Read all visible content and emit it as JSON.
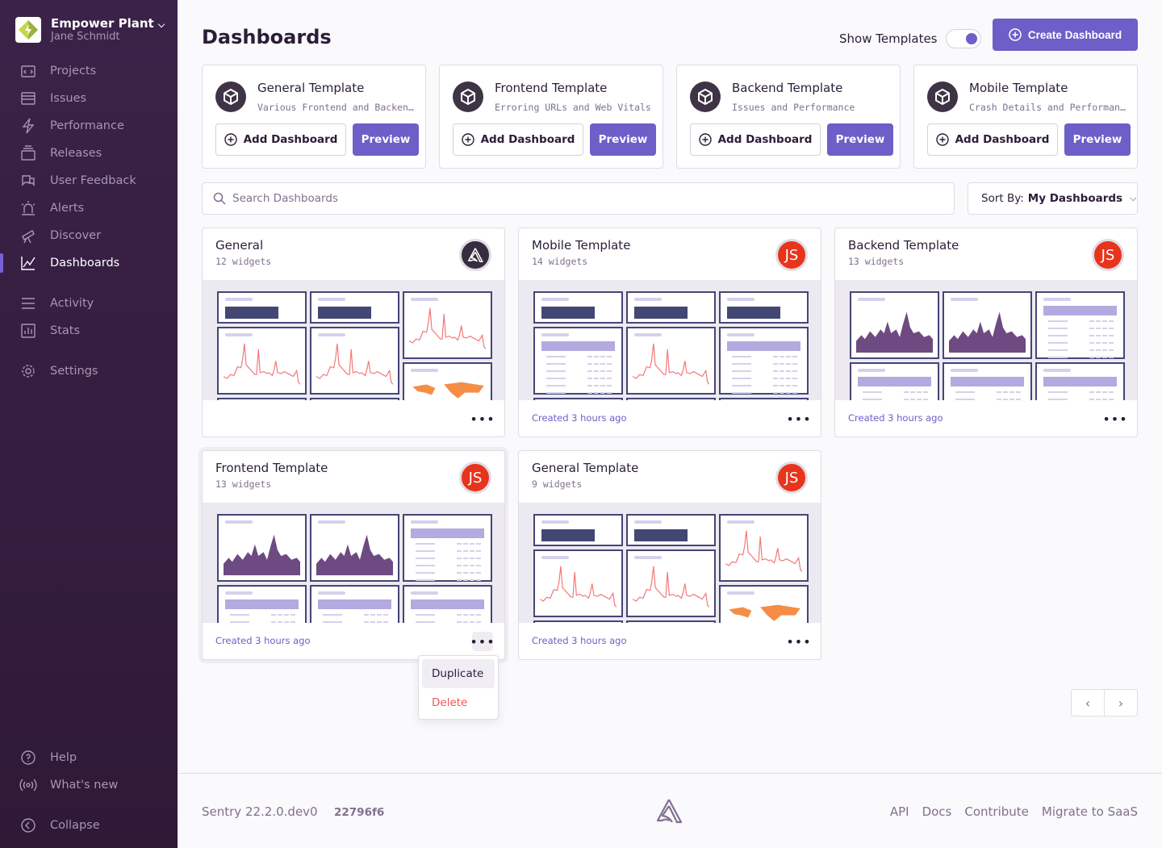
{
  "org": {
    "name": "Empower Plant",
    "user": "Jane Schmidt"
  },
  "sidebar": {
    "items": [
      {
        "label": "Projects",
        "icon": "projects-icon"
      },
      {
        "label": "Issues",
        "icon": "issues-icon"
      },
      {
        "label": "Performance",
        "icon": "lightning-icon"
      },
      {
        "label": "Releases",
        "icon": "releases-icon"
      },
      {
        "label": "User Feedback",
        "icon": "feedback-icon"
      },
      {
        "label": "Alerts",
        "icon": "siren-icon"
      },
      {
        "label": "Discover",
        "icon": "telescope-icon"
      },
      {
        "label": "Dashboards",
        "icon": "graph-icon",
        "active": true
      },
      {
        "label": "Activity",
        "icon": "list-icon"
      },
      {
        "label": "Stats",
        "icon": "stats-icon"
      },
      {
        "label": "Settings",
        "icon": "gear-icon"
      }
    ],
    "bottom": [
      {
        "label": "Help",
        "icon": "question-icon"
      },
      {
        "label": "What's new",
        "icon": "broadcast-icon"
      },
      {
        "label": "Collapse",
        "icon": "collapse-icon"
      }
    ]
  },
  "header": {
    "title": "Dashboards",
    "show_templates_label": "Show Templates",
    "show_templates_on": true,
    "create_label": "Create Dashboard"
  },
  "templates": [
    {
      "title": "General Template",
      "description": "Various Frontend and Backend Widgets",
      "add_label": "Add Dashboard",
      "preview_label": "Preview"
    },
    {
      "title": "Frontend Template",
      "description": "Erroring URLs and Web Vitals",
      "add_label": "Add Dashboard",
      "preview_label": "Preview"
    },
    {
      "title": "Backend Template",
      "description": "Issues and Performance",
      "add_label": "Add Dashboard",
      "preview_label": "Preview"
    },
    {
      "title": "Mobile Template",
      "description": "Crash Details and Performance",
      "add_label": "Add Dashboard",
      "preview_label": "Preview"
    }
  ],
  "search": {
    "placeholder": "Search Dashboards"
  },
  "sort": {
    "label": "Sort By:",
    "value": "My Dashboards"
  },
  "dashboards": [
    {
      "title": "General",
      "widgets": "12 widgets",
      "owner": "sentry",
      "avatar_text": "",
      "created": ""
    },
    {
      "title": "Mobile Template",
      "widgets": "14 widgets",
      "owner": "user",
      "avatar_text": "JS",
      "created": "Created 3 hours ago"
    },
    {
      "title": "Backend Template",
      "widgets": "13 widgets",
      "owner": "user",
      "avatar_text": "JS",
      "created": "Created 3 hours ago"
    },
    {
      "title": "Frontend Template",
      "widgets": "13 widgets",
      "owner": "user",
      "avatar_text": "JS",
      "created": "Created 3 hours ago"
    },
    {
      "title": "General Template",
      "widgets": "9 widgets",
      "owner": "user",
      "avatar_text": "JS",
      "created": "Created 3 hours ago"
    }
  ],
  "context_menu": {
    "items": [
      "Duplicate",
      "Delete"
    ]
  },
  "pagination": {
    "prev": "‹",
    "next": "›"
  },
  "footer": {
    "version": "Sentry 22.2.0.dev0",
    "hash": "22796f6",
    "links": [
      "API",
      "Docs",
      "Contribute",
      "Migrate to SaaS"
    ]
  },
  "colors": {
    "accent": "#6c5fc7",
    "sidebar": "#3b2248",
    "avatar": "#e8341c",
    "danger": "#f55459"
  }
}
